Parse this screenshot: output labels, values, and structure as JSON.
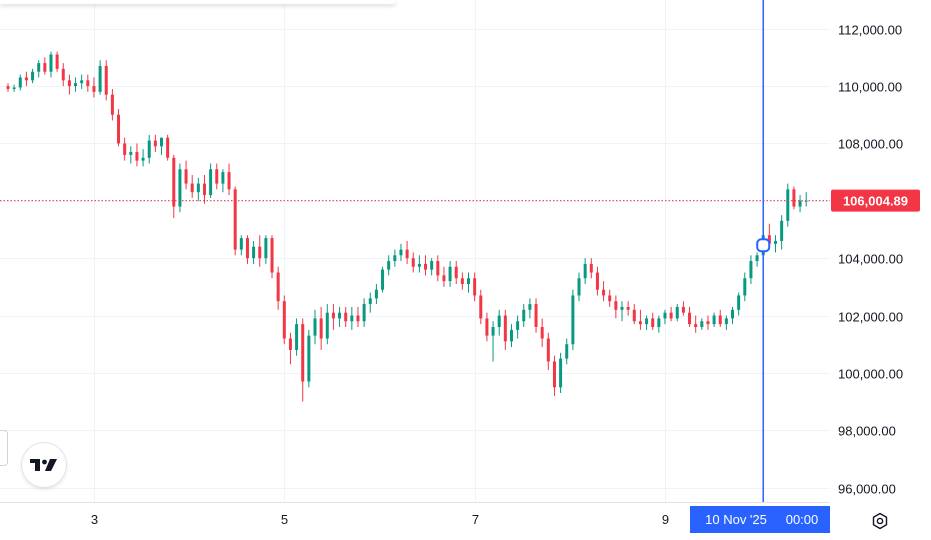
{
  "chart_data": {
    "type": "candlestick",
    "x_ticks": [
      "3",
      "5",
      "7",
      "9"
    ],
    "y_ticks": [
      "112,000.00",
      "110,000.00",
      "108,000.00",
      "106,000.00",
      "104,000.00",
      "102,000.00",
      "100,000.00",
      "98,000.00",
      "96,000.00"
    ],
    "ylim": [
      95500,
      113000
    ],
    "last_price": 106004.89,
    "last_price_label": "106,004.89",
    "crosshair_date_label": "10 Nov '25",
    "crosshair_time_label": "00:00",
    "up_color": "#089981",
    "down_color": "#f23645",
    "crosshair_color": "#2962ff",
    "grid": true,
    "candles": [
      [
        110000,
        110100,
        109800,
        109900
      ],
      [
        109900,
        110050,
        109800,
        109950
      ],
      [
        109950,
        110400,
        109850,
        110300
      ],
      [
        110300,
        110500,
        110000,
        110200
      ],
      [
        110200,
        110600,
        110100,
        110500
      ],
      [
        110500,
        110900,
        110300,
        110800
      ],
      [
        110800,
        111000,
        110400,
        110500
      ],
      [
        110500,
        111200,
        110300,
        111100
      ],
      [
        111100,
        111200,
        110500,
        110600
      ],
      [
        110600,
        110800,
        110000,
        110200
      ],
      [
        110200,
        110400,
        109700,
        110000
      ],
      [
        110000,
        110300,
        109800,
        110100
      ],
      [
        110100,
        110400,
        109900,
        110200
      ],
      [
        110200,
        110400,
        109800,
        110000
      ],
      [
        110000,
        110300,
        109600,
        109800
      ],
      [
        109800,
        110900,
        109700,
        110700
      ],
      [
        110700,
        110900,
        109500,
        109700
      ],
      [
        109700,
        109900,
        108800,
        109000
      ],
      [
        109000,
        109200,
        107900,
        108000
      ],
      [
        108000,
        108200,
        107400,
        107600
      ],
      [
        107600,
        107900,
        107300,
        107700
      ],
      [
        107700,
        108000,
        107200,
        107400
      ],
      [
        107400,
        107800,
        107200,
        107500
      ],
      [
        107500,
        108300,
        107300,
        108100
      ],
      [
        108100,
        108300,
        107700,
        107900
      ],
      [
        107900,
        108200,
        107600,
        108200
      ],
      [
        108200,
        108300,
        107400,
        107500
      ],
      [
        107500,
        107600,
        105400,
        105800
      ],
      [
        105800,
        107300,
        105600,
        107100
      ],
      [
        107100,
        107400,
        106400,
        106600
      ],
      [
        106600,
        106900,
        106100,
        106300
      ],
      [
        106300,
        106800,
        106000,
        106600
      ],
      [
        106600,
        106900,
        105900,
        106200
      ],
      [
        106200,
        107300,
        106100,
        107100
      ],
      [
        107100,
        107300,
        106400,
        106600
      ],
      [
        106600,
        107100,
        106300,
        107000
      ],
      [
        107000,
        107300,
        106200,
        106400
      ],
      [
        106400,
        106500,
        104100,
        104300
      ],
      [
        104300,
        104800,
        104100,
        104700
      ],
      [
        104700,
        104800,
        103800,
        104000
      ],
      [
        104000,
        104600,
        103800,
        104400
      ],
      [
        104400,
        104800,
        103700,
        104000
      ],
      [
        104000,
        104800,
        103800,
        104700
      ],
      [
        104700,
        104800,
        103300,
        103500
      ],
      [
        103500,
        103700,
        102200,
        102500
      ],
      [
        102500,
        102700,
        101000,
        101200
      ],
      [
        101200,
        101400,
        100300,
        100800
      ],
      [
        100800,
        101900,
        100600,
        101700
      ],
      [
        101700,
        101900,
        99000,
        99700
      ],
      [
        99700,
        101500,
        99500,
        101300
      ],
      [
        101300,
        102200,
        101000,
        101900
      ],
      [
        101900,
        102300,
        100800,
        101200
      ],
      [
        101200,
        102400,
        101000,
        102100
      ],
      [
        102100,
        102400,
        101500,
        101900
      ],
      [
        101900,
        102300,
        101600,
        102100
      ],
      [
        102100,
        102300,
        101600,
        101800
      ],
      [
        101800,
        102300,
        101500,
        102000
      ],
      [
        102000,
        102300,
        101600,
        101800
      ],
      [
        101800,
        102600,
        101600,
        102400
      ],
      [
        102400,
        102800,
        102100,
        102600
      ],
      [
        102600,
        103100,
        102400,
        102900
      ],
      [
        102900,
        103700,
        102800,
        103600
      ],
      [
        103600,
        104100,
        103400,
        103900
      ],
      [
        103900,
        104300,
        103700,
        104100
      ],
      [
        104100,
        104500,
        103900,
        104300
      ],
      [
        104300,
        104600,
        103800,
        104000
      ],
      [
        104000,
        104200,
        103500,
        103700
      ],
      [
        103700,
        104100,
        103500,
        103800
      ],
      [
        103800,
        104100,
        103400,
        103600
      ],
      [
        103600,
        104000,
        103400,
        103900
      ],
      [
        103900,
        104100,
        103200,
        103400
      ],
      [
        103400,
        103700,
        103000,
        103200
      ],
      [
        103200,
        103900,
        103000,
        103700
      ],
      [
        103700,
        103900,
        103100,
        103300
      ],
      [
        103300,
        103500,
        102900,
        103100
      ],
      [
        103100,
        103500,
        102800,
        103300
      ],
      [
        103300,
        103500,
        102500,
        102700
      ],
      [
        102700,
        102900,
        101700,
        101900
      ],
      [
        101900,
        102100,
        101100,
        101300
      ],
      [
        101300,
        101800,
        100400,
        101600
      ],
      [
        101600,
        102200,
        101300,
        102000
      ],
      [
        102000,
        102200,
        100800,
        101100
      ],
      [
        101100,
        101700,
        100900,
        101500
      ],
      [
        101500,
        102000,
        101200,
        101800
      ],
      [
        101800,
        102400,
        101600,
        102200
      ],
      [
        102200,
        102600,
        101900,
        102400
      ],
      [
        102400,
        102600,
        101400,
        101600
      ],
      [
        101600,
        101900,
        100900,
        101200
      ],
      [
        101200,
        101400,
        100100,
        100400
      ],
      [
        100400,
        100600,
        99200,
        99500
      ],
      [
        99500,
        100700,
        99300,
        100500
      ],
      [
        100500,
        101200,
        100300,
        101000
      ],
      [
        101000,
        102900,
        100800,
        102700
      ],
      [
        102700,
        103500,
        102500,
        103300
      ],
      [
        103300,
        104000,
        103100,
        103800
      ],
      [
        103800,
        104000,
        103300,
        103500
      ],
      [
        103500,
        103700,
        102700,
        102900
      ],
      [
        102900,
        103200,
        102500,
        102700
      ],
      [
        102700,
        102900,
        102300,
        102500
      ],
      [
        102500,
        102700,
        101900,
        102200
      ],
      [
        102200,
        102500,
        101800,
        102300
      ],
      [
        102300,
        102500,
        102000,
        102200
      ],
      [
        102200,
        102400,
        101700,
        101800
      ],
      [
        101800,
        102200,
        101500,
        101700
      ],
      [
        101700,
        102000,
        101500,
        101900
      ],
      [
        101900,
        102100,
        101500,
        101600
      ],
      [
        101600,
        102000,
        101400,
        101900
      ],
      [
        101900,
        102200,
        101700,
        102100
      ],
      [
        102100,
        102300,
        101800,
        101900
      ],
      [
        101900,
        102400,
        101800,
        102300
      ],
      [
        102300,
        102500,
        102000,
        102100
      ],
      [
        102100,
        102300,
        101600,
        101700
      ],
      [
        101700,
        102000,
        101400,
        101600
      ],
      [
        101600,
        101900,
        101500,
        101800
      ],
      [
        101800,
        102000,
        101500,
        101700
      ],
      [
        101700,
        102100,
        101600,
        102000
      ],
      [
        102000,
        102200,
        101600,
        101700
      ],
      [
        101700,
        102000,
        101500,
        101900
      ],
      [
        101900,
        102300,
        101700,
        102200
      ],
      [
        102200,
        102800,
        102000,
        102700
      ],
      [
        102700,
        103500,
        102500,
        103300
      ],
      [
        103300,
        104100,
        103100,
        103900
      ],
      [
        103900,
        104200,
        103700,
        104100
      ],
      [
        104100,
        105000,
        103900,
        104800
      ],
      [
        104800,
        105200,
        104300,
        104500
      ],
      [
        104500,
        104800,
        104200,
        104600
      ],
      [
        104600,
        105500,
        104300,
        105300
      ],
      [
        105300,
        106600,
        105100,
        106400
      ],
      [
        106400,
        106500,
        105700,
        105800
      ],
      [
        105800,
        106200,
        105600,
        106000
      ],
      [
        106000,
        106300,
        105800,
        106005
      ]
    ]
  }
}
